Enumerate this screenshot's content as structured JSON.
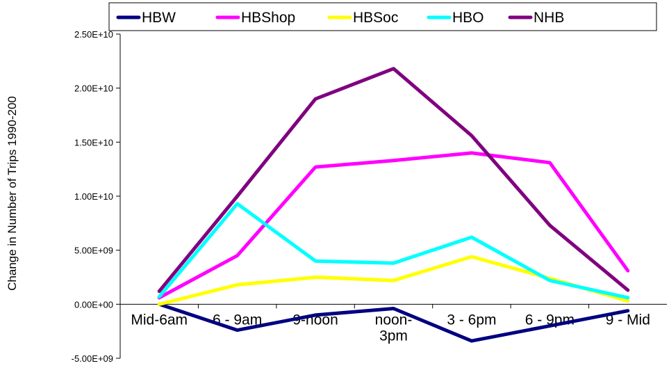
{
  "chart_data": {
    "type": "line",
    "title": "",
    "xlabel": "",
    "ylabel": "Change in Number of Trips 1990-200",
    "ylim": [
      -5000000000,
      25000000000
    ],
    "yticks": [
      -5000000000,
      0,
      5000000000,
      10000000000,
      15000000000,
      20000000000,
      25000000000
    ],
    "ytick_labels": [
      "-5.00E+09",
      "0.00E+00",
      "5.00E+09",
      "1.00E+10",
      "1.50E+10",
      "2.00E+10",
      "2.50E+10"
    ],
    "categories": [
      "Mid-6am",
      "6 - 9am",
      "9-noon",
      "noon-\n3pm",
      "3 - 6pm",
      "6 - 9pm",
      "9 - Mid"
    ],
    "grid": false,
    "legend_position": "top",
    "series": [
      {
        "name": "HBW",
        "color": "#000080",
        "values": [
          0,
          -2400000000,
          -1000000000,
          -400000000,
          -3400000000,
          -2000000000,
          -600000000
        ]
      },
      {
        "name": "HBShop",
        "color": "#ff00ff",
        "values": [
          600000000,
          4500000000,
          12700000000,
          13300000000,
          14000000000,
          13100000000,
          3100000000
        ]
      },
      {
        "name": "HBSoc",
        "color": "#ffff00",
        "values": [
          0,
          1800000000,
          2500000000,
          2200000000,
          4400000000,
          2400000000,
          300000000
        ]
      },
      {
        "name": "HBO",
        "color": "#00ffff",
        "values": [
          700000000,
          9300000000,
          4000000000,
          3800000000,
          6200000000,
          2200000000,
          600000000
        ]
      },
      {
        "name": "NHB",
        "color": "#800080",
        "values": [
          1200000000,
          10000000000,
          19000000000,
          21800000000,
          15600000000,
          7300000000,
          1300000000
        ]
      }
    ]
  }
}
